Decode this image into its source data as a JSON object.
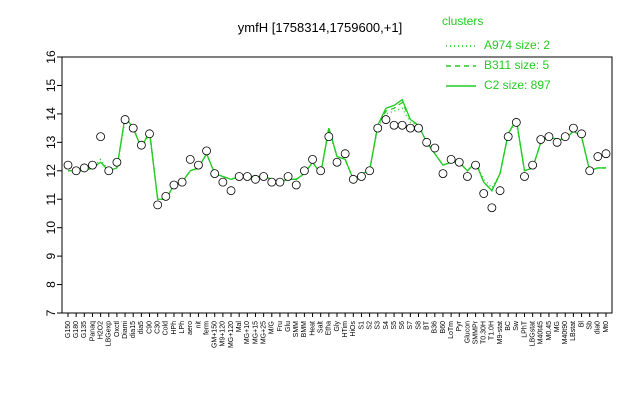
{
  "chart_data": {
    "type": "line",
    "title": "ymfH [1758314,1759600,+1]",
    "legend_title": "clusters",
    "legend_position": "top-right",
    "categories": [
      "G150",
      "G180",
      "G135",
      "Panaq",
      "H2O2",
      "LBGexp",
      "Oxctl",
      "Diami",
      "dia15",
      "dia5",
      "C90",
      "C30",
      "Cold",
      "HPh",
      "LPh",
      "aero",
      "nit",
      "ferm",
      "GM+150",
      "M9+120",
      "MG+120",
      "Mal",
      "MG+10",
      "MG+15",
      "MG+25",
      "M/G",
      "Fru",
      "Glu",
      "SMM",
      "BMM",
      "Heat",
      "Salt",
      "Etha",
      "Gly",
      "HTim",
      "HiOs",
      "S1",
      "S2",
      "S3",
      "S4",
      "S5",
      "S6",
      "S7",
      "S8",
      "BT",
      "B36",
      "B60",
      "LoTm",
      "Pyr",
      "Glucon",
      "SMMPr",
      "T0.30H",
      "T1.0H",
      "M9-stat",
      "BC",
      "Sw",
      "LPhT",
      "LBGstat",
      "M40t45",
      "M0.45",
      "MG",
      "M40t90",
      "LBstat",
      "Bl",
      "Sb",
      "dia0",
      "Mt0"
    ],
    "points": [
      12.2,
      12.0,
      12.1,
      12.2,
      13.2,
      12.0,
      12.3,
      13.8,
      13.5,
      12.9,
      13.3,
      10.8,
      11.1,
      11.5,
      11.6,
      12.4,
      12.2,
      12.7,
      11.9,
      11.6,
      11.3,
      11.8,
      11.8,
      11.7,
      11.8,
      11.6,
      11.6,
      11.8,
      11.5,
      12.0,
      12.4,
      12.0,
      13.2,
      12.3,
      12.6,
      11.7,
      11.8,
      12.0,
      13.5,
      13.8,
      13.6,
      13.6,
      13.5,
      13.5,
      13.0,
      12.8,
      11.9,
      12.4,
      12.3,
      11.8,
      12.2,
      11.2,
      10.7,
      11.3,
      13.2,
      13.7,
      11.8,
      12.2,
      13.1,
      13.2,
      13.0,
      13.2,
      13.5,
      13.3,
      12.0,
      12.5,
      12.6
    ],
    "series": [
      {
        "name": "A974 size: 2",
        "color": "#22cc22",
        "dash": "dotted",
        "values": [
          12.0,
          12.0,
          12.0,
          12.1,
          12.4,
          12.0,
          12.1,
          13.8,
          13.5,
          12.8,
          13.3,
          11.0,
          11.0,
          11.5,
          11.6,
          12.0,
          12.1,
          12.6,
          11.9,
          11.8,
          11.7,
          11.8,
          11.8,
          11.8,
          11.8,
          11.7,
          11.6,
          11.7,
          11.7,
          11.9,
          12.3,
          11.9,
          13.4,
          12.5,
          12.4,
          11.7,
          11.9,
          12.0,
          13.5,
          14.0,
          14.1,
          14.2,
          13.7,
          13.6,
          13.0,
          12.6,
          12.2,
          12.3,
          12.3,
          12.0,
          12.3,
          11.7,
          11.4,
          11.9,
          13.3,
          13.7,
          12.0,
          12.1,
          13.0,
          13.2,
          13.1,
          13.1,
          13.4,
          13.2,
          12.0,
          12.1,
          12.1
        ]
      },
      {
        "name": "B311 size: 5",
        "color": "#22cc22",
        "dash": "dashed",
        "values": [
          12.0,
          12.0,
          12.0,
          12.1,
          12.3,
          12.0,
          12.1,
          13.9,
          13.5,
          12.8,
          13.4,
          11.0,
          11.0,
          11.5,
          11.6,
          12.0,
          12.1,
          12.6,
          11.9,
          11.8,
          11.7,
          11.8,
          11.8,
          11.8,
          11.8,
          11.7,
          11.6,
          11.7,
          11.7,
          11.9,
          12.3,
          11.9,
          13.5,
          12.5,
          12.4,
          11.7,
          11.9,
          12.0,
          13.6,
          14.1,
          14.2,
          14.4,
          13.8,
          13.6,
          13.0,
          12.6,
          12.2,
          12.3,
          12.3,
          12.0,
          12.3,
          11.6,
          11.3,
          11.9,
          13.3,
          13.8,
          12.0,
          12.1,
          13.0,
          13.2,
          13.1,
          13.1,
          13.4,
          13.2,
          12.0,
          12.1,
          12.1
        ]
      },
      {
        "name": "C2 size: 897",
        "color": "#22cc22",
        "dash": "solid",
        "values": [
          12.0,
          12.0,
          12.0,
          12.1,
          12.3,
          12.0,
          12.1,
          13.9,
          13.5,
          12.8,
          13.4,
          11.0,
          11.0,
          11.5,
          11.6,
          12.0,
          12.1,
          12.6,
          11.9,
          11.8,
          11.7,
          11.8,
          11.8,
          11.8,
          11.8,
          11.7,
          11.6,
          11.7,
          11.7,
          11.9,
          12.3,
          11.9,
          13.5,
          12.5,
          12.4,
          11.7,
          11.9,
          12.0,
          13.6,
          14.2,
          14.3,
          14.5,
          13.8,
          13.6,
          13.0,
          12.6,
          12.2,
          12.3,
          12.3,
          12.0,
          12.3,
          11.6,
          11.3,
          11.9,
          13.3,
          13.8,
          12.0,
          12.1,
          13.0,
          13.2,
          13.1,
          13.1,
          13.4,
          13.2,
          12.0,
          12.1,
          12.1
        ]
      }
    ],
    "ylim": [
      7,
      16
    ],
    "yticks": [
      7,
      8,
      9,
      10,
      11,
      12,
      13,
      14,
      15,
      16
    ]
  }
}
